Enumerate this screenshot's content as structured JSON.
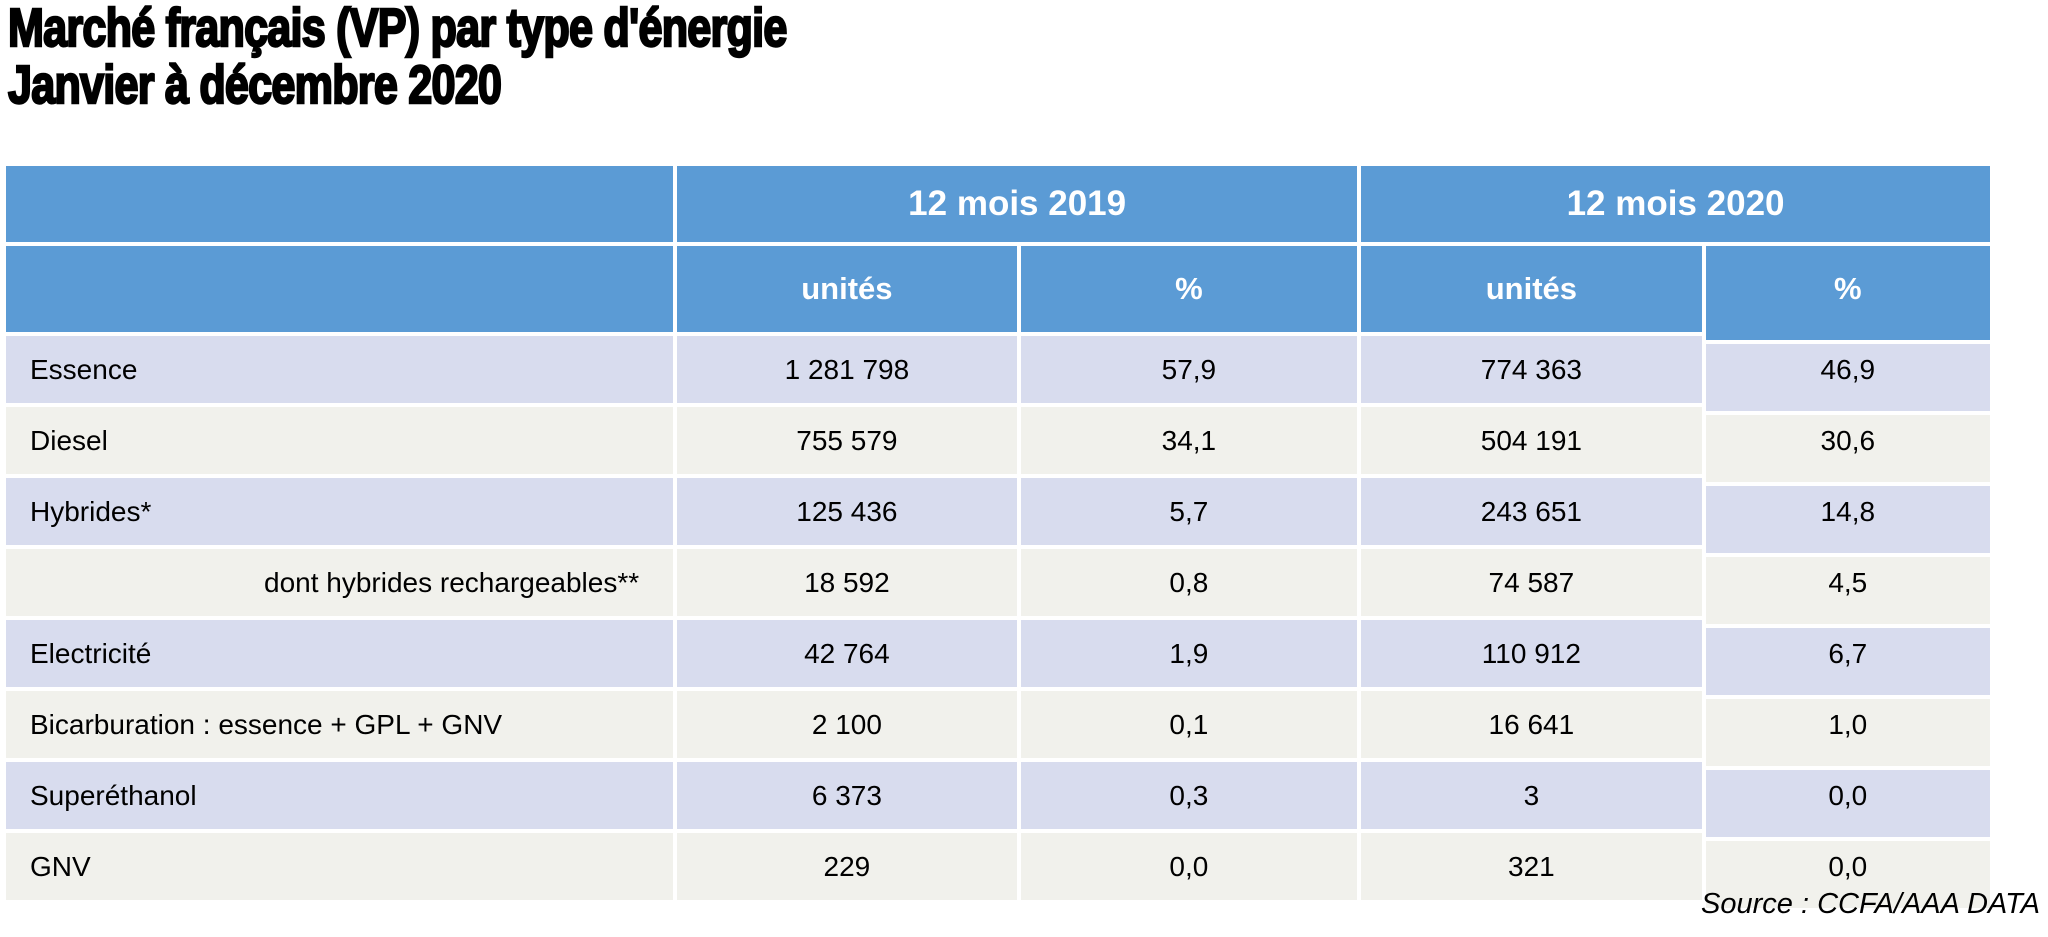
{
  "title": {
    "line1": "Marché français (VP) par type d'énergie",
    "line2": "Janvier à décembre 2020"
  },
  "source": "Source : CCFA/AAA DATA",
  "colors": {
    "header_blue": "#5B9BD5",
    "row_lavender": "#D8DCEE",
    "row_offwhite": "#F1F1EC",
    "header_text": "#FFFFFF",
    "body_text": "#000000"
  },
  "chart_data": {
    "type": "table",
    "title": "Marché français (VP) par type d'énergie — Janvier à décembre 2020",
    "column_groups": [
      "12 mois 2019",
      "12 mois 2020"
    ],
    "columns": [
      "unités",
      "%",
      "unités",
      "%"
    ],
    "rows": [
      {
        "label": "Essence",
        "indent": false,
        "values": [
          "1 281 798",
          "57,9",
          "774 363",
          "46,9"
        ]
      },
      {
        "label": "Diesel",
        "indent": false,
        "values": [
          "755 579",
          "34,1",
          "504 191",
          "30,6"
        ]
      },
      {
        "label": "Hybrides*",
        "indent": false,
        "values": [
          "125 436",
          "5,7",
          "243 651",
          "14,8"
        ]
      },
      {
        "label": "dont hybrides rechargeables**",
        "indent": true,
        "values": [
          "18 592",
          "0,8",
          "74 587",
          "4,5"
        ]
      },
      {
        "label": "Electricité",
        "indent": false,
        "values": [
          "42 764",
          "1,9",
          "110 912",
          "6,7"
        ]
      },
      {
        "label": "Bicarburation : essence + GPL + GNV",
        "indent": false,
        "values": [
          "2 100",
          "0,1",
          "16 641",
          "1,0"
        ]
      },
      {
        "label": "Superéthanol",
        "indent": false,
        "values": [
          "6 373",
          "0,3",
          "3",
          "0,0"
        ]
      },
      {
        "label": "GNV",
        "indent": false,
        "values": [
          "229",
          "0,0",
          "321",
          "0,0"
        ]
      }
    ]
  }
}
